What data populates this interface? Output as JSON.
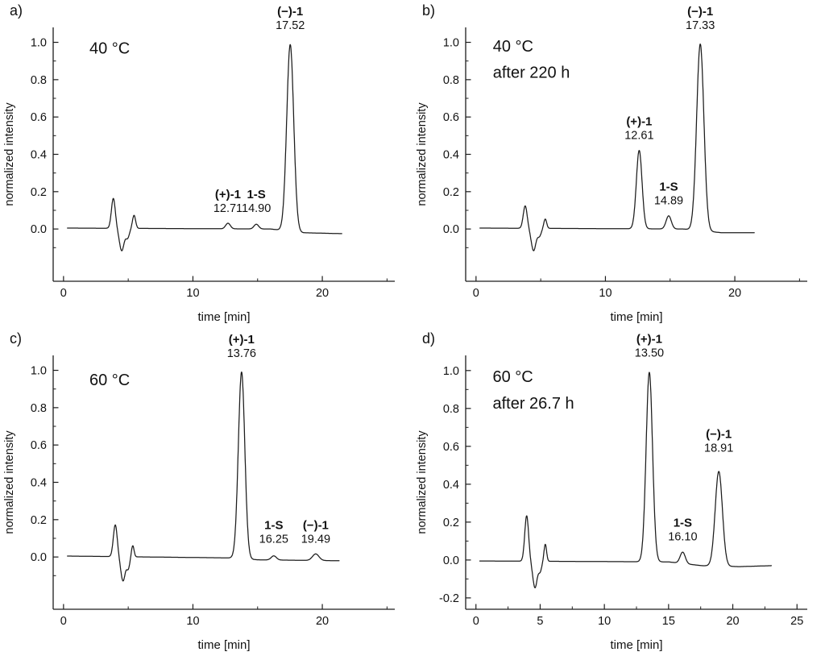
{
  "figure": {
    "background": "#ffffff",
    "axis_color": "#1c1c1c",
    "trace_color": "#1c1c1c",
    "text_color": "#111111"
  },
  "chart_data": [
    {
      "type": "line",
      "panel_label": "a)",
      "condition_lines": [
        {
          "text": "40 °C",
          "x": 2.0,
          "y": 0.94
        }
      ],
      "xlabel": "time [min]",
      "ylabel": "normalized intensity",
      "xlim": [
        -0.8,
        25.6
      ],
      "ylim": [
        -0.28,
        1.08
      ],
      "x_major_ticks": [
        0,
        10,
        20
      ],
      "x_minor_ticks": [
        5,
        15,
        25
      ],
      "y_major_ticks": [
        0.0,
        0.2,
        0.4,
        0.6,
        0.8,
        1.0
      ],
      "y_minor_ticks": [
        -0.1,
        0.1,
        0.3,
        0.5,
        0.7,
        0.9
      ],
      "trace_start": 0.3,
      "trace_end": 21.5,
      "peaks": [
        {
          "name": "(+)-1",
          "rt": 12.71,
          "rt_label": "12.71",
          "height": 0.03,
          "sigma": 0.18,
          "label_y": 0.165
        },
        {
          "name": "1-S",
          "rt": 14.9,
          "rt_label": "14.90",
          "height": 0.025,
          "sigma": 0.18,
          "label_y": 0.165
        },
        {
          "name": "(−)-1",
          "rt": 17.52,
          "rt_label": "17.52",
          "height": 1.0,
          "sigma": 0.27,
          "label_y": 1.145
        }
      ],
      "artifacts": [
        {
          "c": 3.85,
          "h": 0.16,
          "s": 0.15
        },
        {
          "c": 4.5,
          "h": -0.12,
          "s": 0.18
        },
        {
          "c": 4.95,
          "h": -0.05,
          "s": 0.14
        },
        {
          "c": 5.45,
          "h": 0.07,
          "s": 0.12
        }
      ],
      "baseline": [
        [
          0.3,
          0.005
        ],
        [
          16.0,
          0.0
        ],
        [
          18.5,
          -0.02
        ],
        [
          21.5,
          -0.025
        ]
      ]
    },
    {
      "type": "line",
      "panel_label": "b)",
      "condition_lines": [
        {
          "text": "40 °C",
          "x": 1.3,
          "y": 0.95
        },
        {
          "text": "after 220 h",
          "x": 1.3,
          "y": 0.81
        }
      ],
      "xlabel": "time [min]",
      "ylabel": "normalized intensity",
      "xlim": [
        -0.8,
        25.6
      ],
      "ylim": [
        -0.28,
        1.08
      ],
      "x_major_ticks": [
        0,
        10,
        20
      ],
      "x_minor_ticks": [
        5,
        15,
        25
      ],
      "y_major_ticks": [
        0.0,
        0.2,
        0.4,
        0.6,
        0.8,
        1.0
      ],
      "y_minor_ticks": [
        -0.1,
        0.1,
        0.3,
        0.5,
        0.7,
        0.9
      ],
      "trace_start": 0.3,
      "trace_end": 21.5,
      "peaks": [
        {
          "name": "(+)-1",
          "rt": 12.61,
          "rt_label": "12.61",
          "height": 0.42,
          "sigma": 0.22,
          "label_y": 0.555
        },
        {
          "name": "1-S",
          "rt": 14.89,
          "rt_label": "14.89",
          "height": 0.07,
          "sigma": 0.2,
          "label_y": 0.205
        },
        {
          "name": "(−)-1",
          "rt": 17.33,
          "rt_label": "17.33",
          "height": 1.0,
          "sigma": 0.28,
          "label_y": 1.145
        }
      ],
      "artifacts": [
        {
          "c": 3.8,
          "h": 0.12,
          "s": 0.15
        },
        {
          "c": 4.45,
          "h": -0.12,
          "s": 0.18
        },
        {
          "c": 4.9,
          "h": -0.04,
          "s": 0.14
        },
        {
          "c": 5.35,
          "h": 0.05,
          "s": 0.11
        }
      ],
      "baseline": [
        [
          0.3,
          0.005
        ],
        [
          16.0,
          0.0
        ],
        [
          19.0,
          -0.02
        ],
        [
          21.5,
          -0.02
        ]
      ]
    },
    {
      "type": "line",
      "panel_label": "c)",
      "condition_lines": [
        {
          "text": "60 °C",
          "x": 2.0,
          "y": 0.92
        }
      ],
      "xlabel": "time [min]",
      "ylabel": "normalized intensity",
      "xlim": [
        -0.8,
        25.6
      ],
      "ylim": [
        -0.28,
        1.08
      ],
      "x_major_ticks": [
        0,
        10,
        20
      ],
      "x_minor_ticks": [
        5,
        15,
        25
      ],
      "y_major_ticks": [
        0.0,
        0.2,
        0.4,
        0.6,
        0.8,
        1.0
      ],
      "y_minor_ticks": [
        -0.1,
        0.1,
        0.3,
        0.5,
        0.7,
        0.9
      ],
      "trace_start": 0.3,
      "trace_end": 21.3,
      "peaks": [
        {
          "name": "(+)-1",
          "rt": 13.76,
          "rt_label": "13.76",
          "height": 1.0,
          "sigma": 0.25,
          "label_y": 1.145
        },
        {
          "name": "1-S",
          "rt": 16.25,
          "rt_label": "16.25",
          "height": 0.022,
          "sigma": 0.2,
          "label_y": 0.15
        },
        {
          "name": "(−)-1",
          "rt": 19.49,
          "rt_label": "19.49",
          "height": 0.035,
          "sigma": 0.25,
          "label_y": 0.15
        }
      ],
      "artifacts": [
        {
          "c": 4.0,
          "h": 0.17,
          "s": 0.15
        },
        {
          "c": 4.6,
          "h": -0.13,
          "s": 0.17
        },
        {
          "c": 5.0,
          "h": -0.06,
          "s": 0.12
        },
        {
          "c": 5.35,
          "h": 0.06,
          "s": 0.1
        }
      ],
      "baseline": [
        [
          0.3,
          0.005
        ],
        [
          13.0,
          -0.005
        ],
        [
          15.0,
          -0.015
        ],
        [
          21.3,
          -0.02
        ]
      ]
    },
    {
      "type": "line",
      "panel_label": "d)",
      "condition_lines": [
        {
          "text": "60 °C",
          "x": 1.3,
          "y": 0.94
        },
        {
          "text": "after 26.7 h",
          "x": 1.3,
          "y": 0.8
        }
      ],
      "xlabel": "time [min]",
      "ylabel": "normalized intensity",
      "xlim": [
        -0.8,
        25.8
      ],
      "ylim": [
        -0.26,
        1.08
      ],
      "x_major_ticks": [
        0,
        5,
        10,
        15,
        20,
        25
      ],
      "x_minor_ticks": [
        2.5,
        7.5,
        12.5,
        17.5,
        22.5
      ],
      "y_major_ticks": [
        -0.2,
        0.0,
        0.2,
        0.4,
        0.6,
        0.8,
        1.0
      ],
      "y_minor_ticks": [
        -0.1,
        0.1,
        0.3,
        0.5,
        0.7,
        0.9
      ],
      "trace_start": 0.3,
      "trace_end": 23.0,
      "peaks": [
        {
          "name": "(+)-1",
          "rt": 13.5,
          "rt_label": "13.50",
          "height": 1.0,
          "sigma": 0.25,
          "label_y": 1.145
        },
        {
          "name": "1-S",
          "rt": 16.1,
          "rt_label": "16.10",
          "height": 0.06,
          "sigma": 0.2,
          "label_y": 0.175
        },
        {
          "name": "(−)-1",
          "rt": 18.91,
          "rt_label": "18.91",
          "height": 0.5,
          "sigma": 0.28,
          "label_y": 0.645
        }
      ],
      "artifacts": [
        {
          "c": 3.95,
          "h": 0.24,
          "s": 0.15
        },
        {
          "c": 4.6,
          "h": -0.14,
          "s": 0.17
        },
        {
          "c": 5.0,
          "h": -0.05,
          "s": 0.12
        },
        {
          "c": 5.4,
          "h": 0.09,
          "s": 0.1
        }
      ],
      "baseline": [
        [
          0.3,
          -0.005
        ],
        [
          15.0,
          -0.01
        ],
        [
          17.6,
          -0.03
        ],
        [
          20.5,
          -0.035
        ],
        [
          23.0,
          -0.03
        ]
      ]
    }
  ]
}
